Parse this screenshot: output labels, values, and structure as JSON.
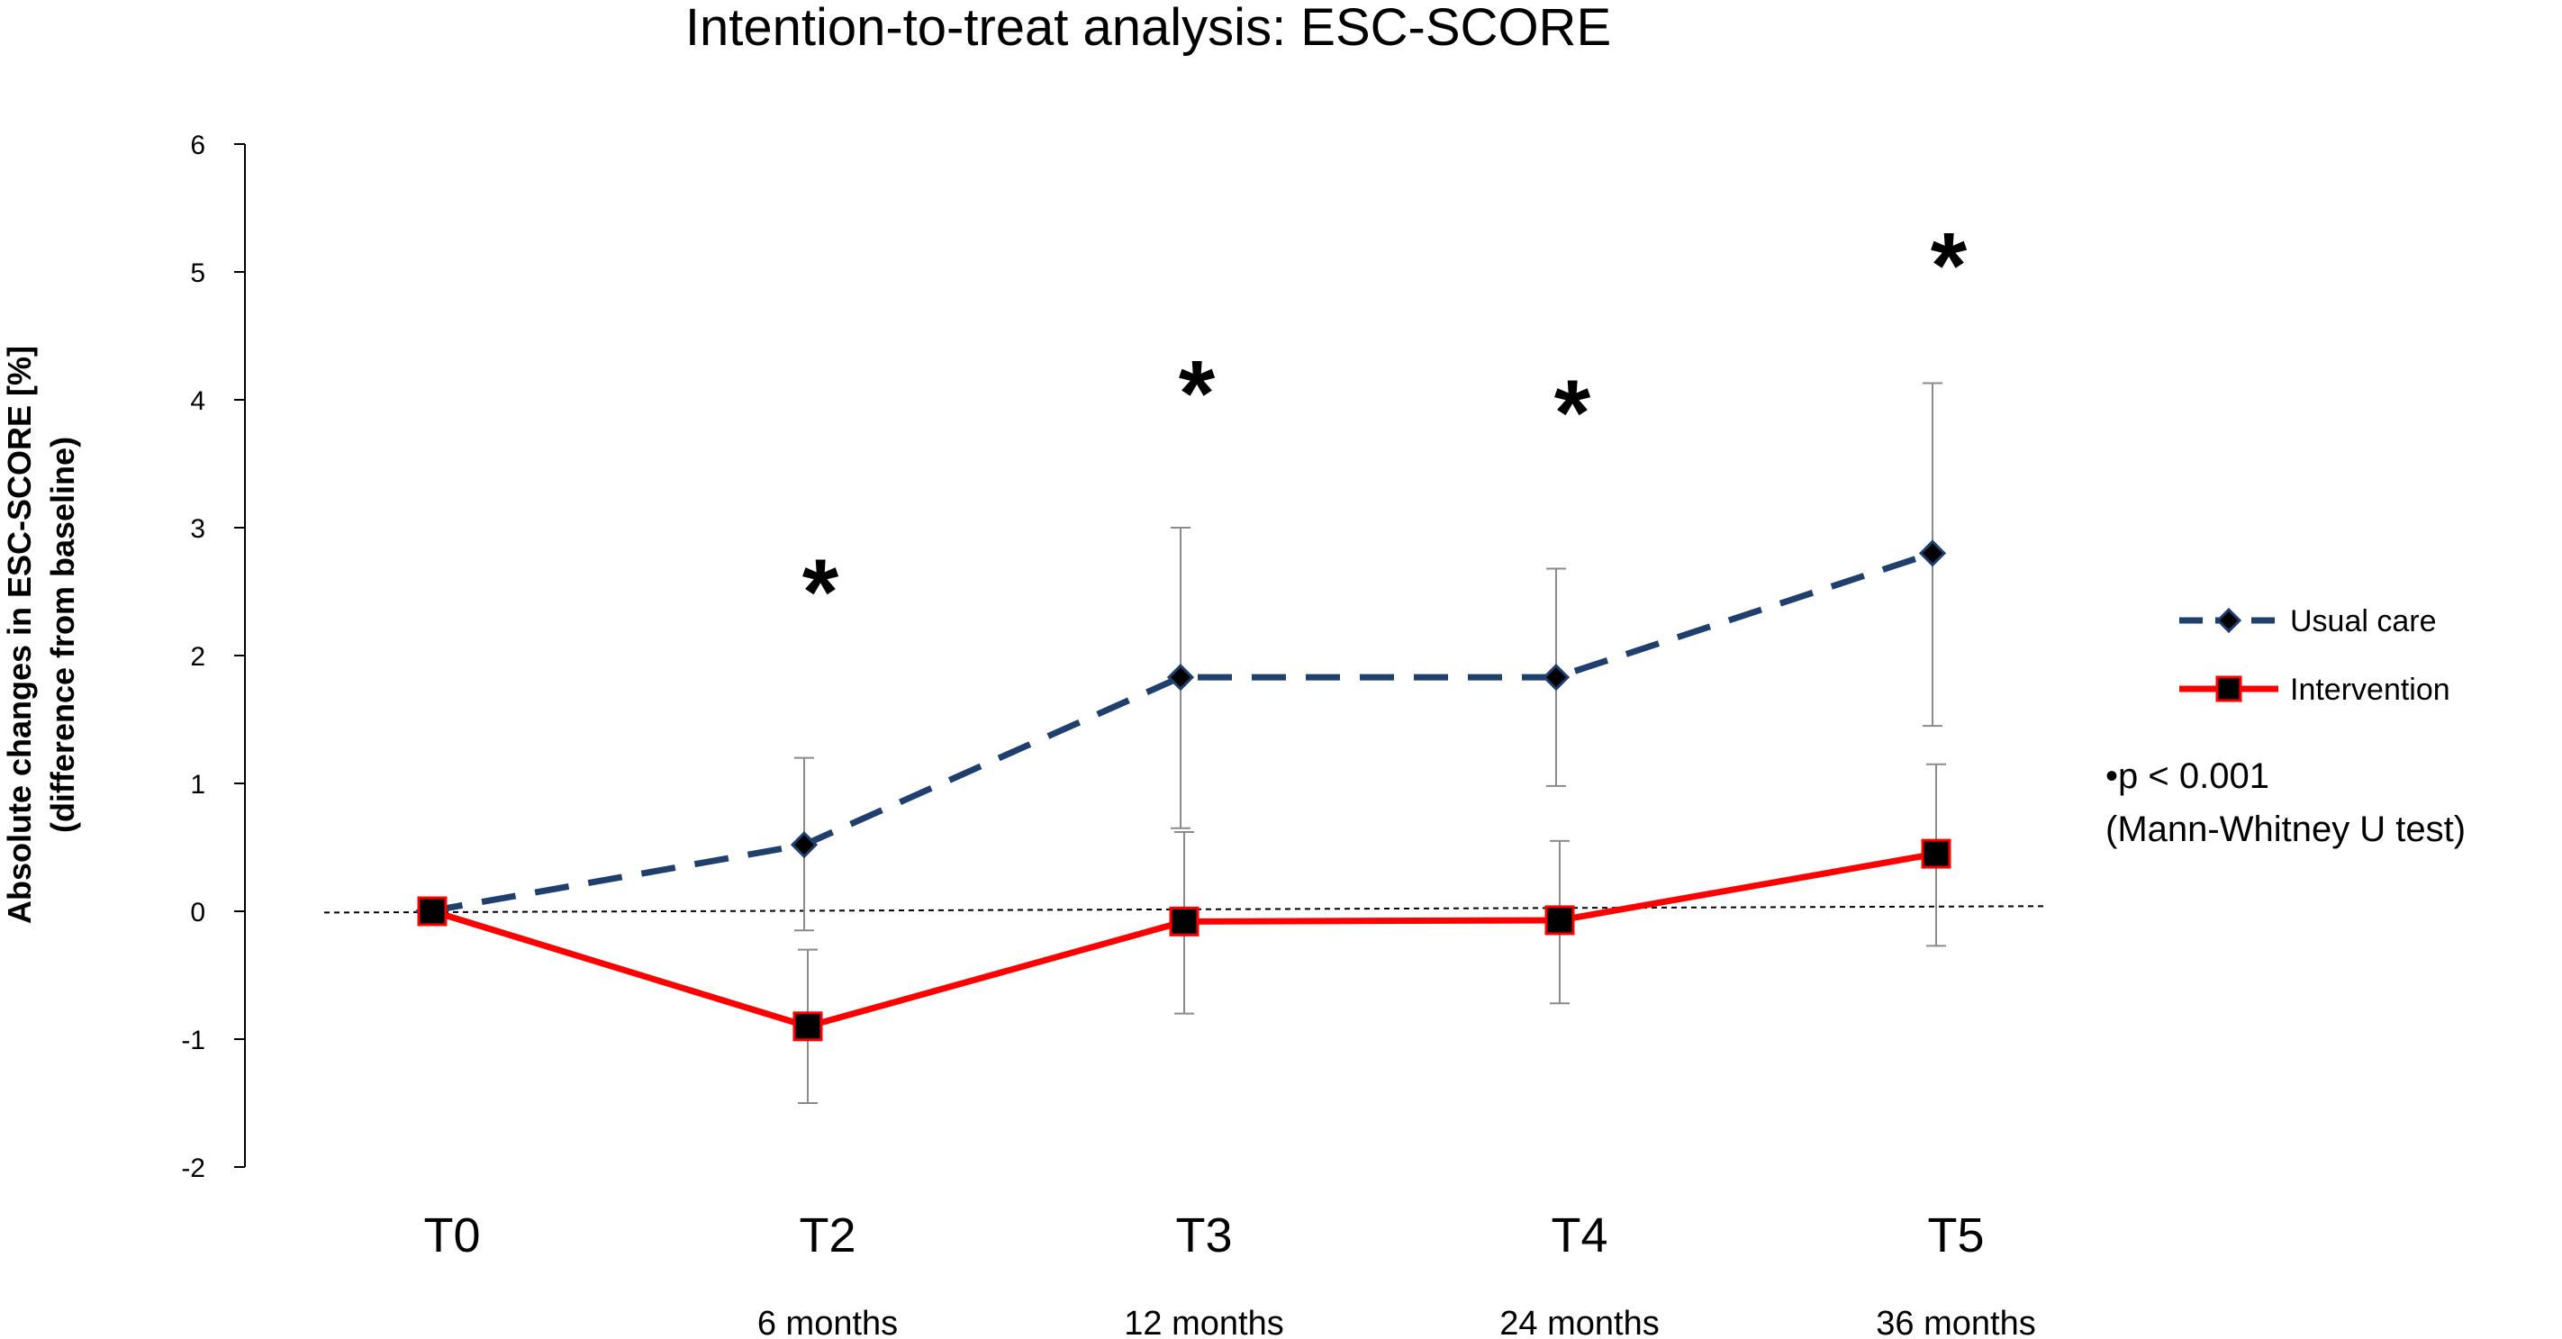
{
  "chart_data": {
    "type": "line",
    "title": "Intention-to-treat analysis: ESC-SCORE",
    "ylabel_line1": "Absolute changes in ESC-SCORE [%]",
    "ylabel_line2": "(difference from baseline)",
    "ylim": [
      -2,
      6
    ],
    "yticks": [
      6,
      5,
      4,
      3,
      2,
      1,
      0,
      -1,
      -2
    ],
    "ytick_labels": [
      "6",
      "5",
      "4",
      "3",
      "2",
      "1",
      "0",
      "-1",
      "-2"
    ],
    "categories": [
      "T0",
      "T2",
      "T3",
      "T4",
      "T5"
    ],
    "sublabels": [
      "",
      "6 months",
      "12 months",
      "24 months",
      "36 months"
    ],
    "series": [
      {
        "name": "Usual care",
        "color": "#1f3f6e",
        "marker_color": "#000000",
        "style": "dashed",
        "marker": "diamond",
        "values": [
          0,
          0.52,
          1.83,
          1.83,
          2.8
        ],
        "error_low": [
          null,
          -0.15,
          0.65,
          0.98,
          1.45
        ],
        "error_high": [
          null,
          1.2,
          3.0,
          2.68,
          4.13
        ]
      },
      {
        "name": "Intervention",
        "color": "#ff0000",
        "marker_color": "#000000",
        "style": "solid",
        "marker": "square",
        "values": [
          0,
          -0.9,
          -0.08,
          -0.07,
          0.45
        ],
        "error_low": [
          null,
          -1.5,
          -0.8,
          -0.72,
          -0.27
        ],
        "error_high": [
          null,
          -0.3,
          0.62,
          0.55,
          1.15
        ]
      }
    ],
    "significance_marker": "*",
    "significance_categories": [
      "T2",
      "T3",
      "T4",
      "T5"
    ],
    "significance_positions_y": [
      2.6,
      4.15,
      4.0,
      5.15
    ],
    "legend_position": "right",
    "annotation_line1": "•p < 0.001",
    "annotation_line2": "(Mann-Whitney U test)"
  }
}
